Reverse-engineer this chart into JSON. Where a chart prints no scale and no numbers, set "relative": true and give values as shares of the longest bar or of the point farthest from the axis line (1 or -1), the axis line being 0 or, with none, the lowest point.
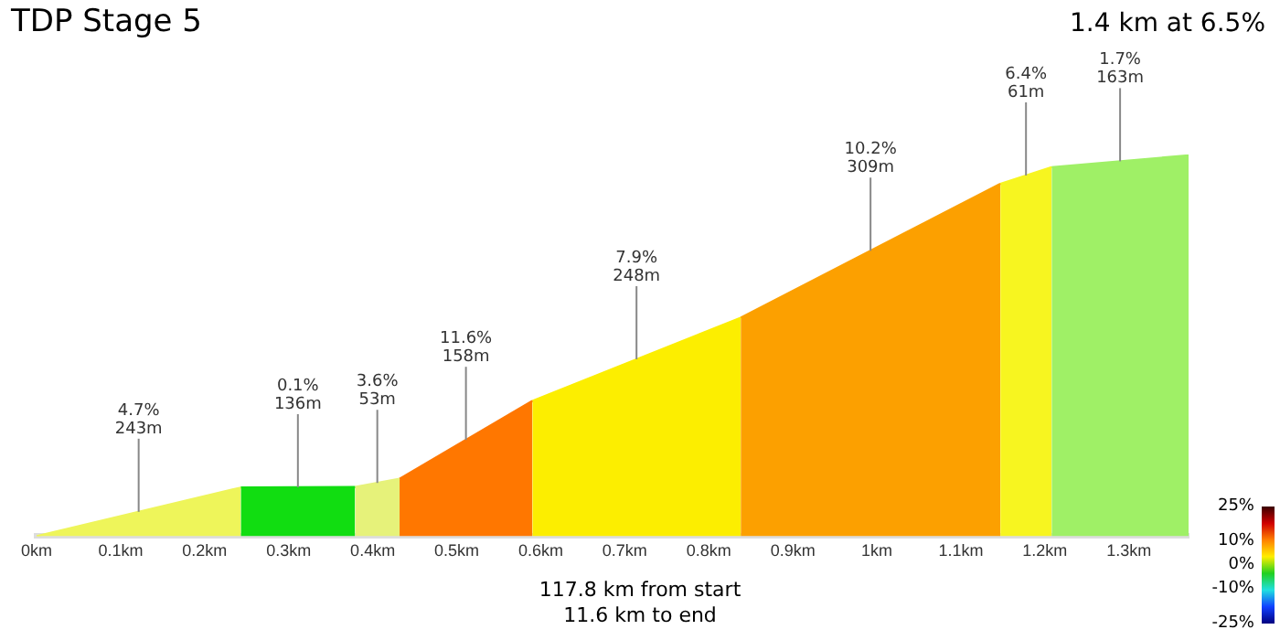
{
  "chart_data": {
    "type": "area",
    "title": "TDP Stage 5",
    "subtitle": "1.4 km at 6.5%",
    "relative": true,
    "grid": false,
    "legend": false,
    "tick_labels": "x",
    "xlim": [
      0,
      1.371
    ],
    "xticks": [
      {
        "value": 0,
        "label": "0km"
      },
      {
        "value": 0.1,
        "label": "0.1km"
      },
      {
        "value": 0.2,
        "label": "0.2km"
      },
      {
        "value": 0.3,
        "label": "0.3km"
      },
      {
        "value": 0.4,
        "label": "0.4km"
      },
      {
        "value": 0.5,
        "label": "0.5km"
      },
      {
        "value": 0.6,
        "label": "0.6km"
      },
      {
        "value": 0.7,
        "label": "0.7km"
      },
      {
        "value": 0.8,
        "label": "0.8km"
      },
      {
        "value": 0.9,
        "label": "0.9km"
      },
      {
        "value": 1,
        "label": "1km"
      },
      {
        "value": 1.1,
        "label": "1.1km"
      },
      {
        "value": 1.2,
        "label": "1.2km"
      },
      {
        "value": 1.3,
        "label": "1.3km"
      }
    ],
    "series": [
      {
        "color": "#eef55a",
        "x": [
          0,
          0.243
        ],
        "values": [
          0,
          0.1275
        ]
      },
      {
        "color": "#11dd11",
        "x": [
          0.243,
          0.379
        ],
        "values": [
          0.1275,
          0.129
        ]
      },
      {
        "color": "#e6f27a",
        "x": [
          0.379,
          0.432
        ],
        "values": [
          0.129,
          0.1504
        ]
      },
      {
        "color": "#ff7700",
        "x": [
          0.432,
          0.59
        ],
        "values": [
          0.1504,
          0.355
        ]
      },
      {
        "color": "#fcee00",
        "x": [
          0.59,
          0.838
        ],
        "values": [
          0.355,
          0.5737
        ]
      },
      {
        "color": "#fca000",
        "x": [
          0.838,
          1.147
        ],
        "values": [
          0.5737,
          0.9255
        ]
      },
      {
        "color": "#f7f520",
        "x": [
          1.147,
          1.208
        ],
        "values": [
          0.9255,
          0.9691
        ]
      },
      {
        "color": "#9ff066",
        "x": [
          1.208,
          1.371
        ],
        "values": [
          0.9691,
          1
        ]
      }
    ],
    "annotations": [
      {
        "text": "4.7%\n243m",
        "x": 0.1215,
        "y": 0.0638
      },
      {
        "text": "0.1%\n136m",
        "x": 0.311,
        "y": 0.1283
      },
      {
        "text": "3.6%\n53m",
        "x": 0.4055,
        "y": 0.1397
      },
      {
        "text": "11.6%\n158m",
        "x": 0.511,
        "y": 0.2527
      },
      {
        "text": "7.9%\n248m",
        "x": 0.714,
        "y": 0.4644
      },
      {
        "text": "10.2%\n309m",
        "x": 0.9925,
        "y": 0.7496
      },
      {
        "text": "6.4%\n61m",
        "x": 1.1775,
        "y": 0.9473
      },
      {
        "text": "1.7%\n163m",
        "x": 1.2895,
        "y": 0.9846
      },
      "117.8 km from start\n11.6 km to end"
    ],
    "clim": [
      -25,
      25
    ],
    "cticks": [
      {
        "value": 25,
        "label": "25%"
      },
      {
        "value": 10,
        "label": "10%"
      },
      {
        "value": 0,
        "label": "0%"
      },
      {
        "value": -10,
        "label": "-10%"
      },
      {
        "value": -25,
        "label": "-25%"
      }
    ]
  }
}
